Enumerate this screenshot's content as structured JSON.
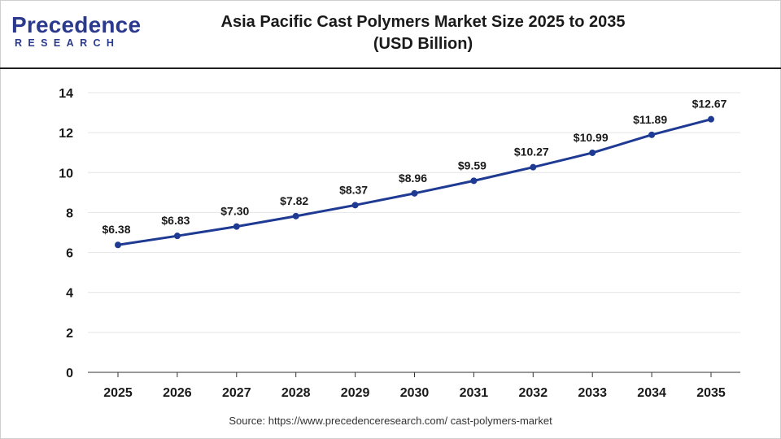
{
  "brand": {
    "name": "Precedence",
    "subtitle": "RESEARCH",
    "color": "#2b3a8f"
  },
  "chart_data": {
    "type": "line",
    "title_line1": "Asia Pacific Cast Polymers Market Size 2025 to 2035",
    "title_line2": "(USD Billion)",
    "xlabel": "",
    "ylabel": "",
    "x": [
      "2025",
      "2026",
      "2027",
      "2028",
      "2029",
      "2030",
      "2031",
      "2032",
      "2033",
      "2034",
      "2035"
    ],
    "series": [
      {
        "values": [
          6.38,
          6.83,
          7.3,
          7.82,
          8.37,
          8.96,
          9.59,
          10.27,
          10.99,
          11.89,
          12.67
        ],
        "labels": [
          "$6.38",
          "$6.83",
          "$7.30",
          "$7.82",
          "$8.37",
          "$8.96",
          "$9.59",
          "$10.27",
          "$10.99",
          "$11.89",
          "$12.67"
        ],
        "color": "#1f3a93"
      }
    ],
    "ylim": [
      0,
      14
    ],
    "yticks": [
      "0",
      "2",
      "4",
      "6",
      "8",
      "10",
      "12",
      "14"
    ],
    "grid": true,
    "legend": "none"
  },
  "source": "Source: https://www.precedenceresearch.com/ cast-polymers-market"
}
